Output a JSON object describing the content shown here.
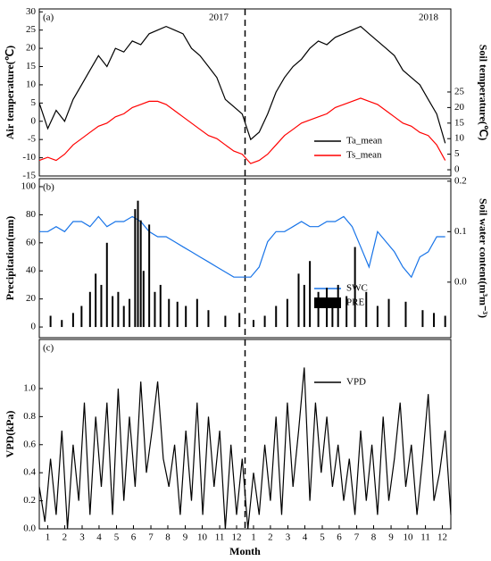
{
  "chart_data": [
    {
      "type": "line",
      "panel_label": "(a)",
      "ylabel": "Air temperature(℃)",
      "y2label": "Soil temperature(℃)",
      "annotations": [
        "2017",
        "2018"
      ],
      "vline": 365,
      "xlim": [
        0,
        730
      ],
      "ylim": [
        -15,
        30.8
      ],
      "yticks": [
        -15,
        -10,
        -5,
        0,
        5,
        10,
        15,
        20,
        25,
        30
      ],
      "y2lim": [
        -2,
        51.7
      ],
      "y2ticks": [
        0,
        5,
        10,
        15,
        20,
        25
      ],
      "x": [
        0,
        15,
        30,
        45,
        60,
        75,
        90,
        105,
        120,
        135,
        150,
        165,
        180,
        195,
        210,
        225,
        240,
        255,
        270,
        285,
        300,
        315,
        330,
        345,
        360,
        375,
        390,
        405,
        420,
        435,
        450,
        465,
        480,
        495,
        510,
        525,
        540,
        555,
        570,
        585,
        600,
        615,
        630,
        645,
        660,
        675,
        690,
        705,
        720
      ],
      "series": [
        {
          "name": "Ta_mean",
          "color": "#000000",
          "values": [
            5,
            -2,
            3,
            0,
            6,
            10,
            14,
            18,
            15,
            20,
            19,
            22,
            21,
            24,
            25,
            26,
            25,
            24,
            20,
            18,
            15,
            12,
            6,
            4,
            2,
            -5,
            -3,
            2,
            8,
            12,
            15,
            17,
            20,
            22,
            21,
            23,
            24,
            25,
            26,
            24,
            22,
            20,
            18,
            14,
            12,
            10,
            6,
            2,
            -6
          ]
        },
        {
          "name": "Ts_mean",
          "color": "#ff0000",
          "axis": "y2",
          "values": [
            3,
            4,
            3,
            5,
            8,
            10,
            12,
            14,
            15,
            17,
            18,
            20,
            21,
            22,
            22,
            21,
            19,
            17,
            15,
            13,
            11,
            10,
            8,
            6,
            5,
            2,
            3,
            5,
            8,
            11,
            13,
            15,
            16,
            17,
            18,
            20,
            21,
            22,
            23,
            22,
            21,
            19,
            17,
            15,
            14,
            12,
            11,
            8,
            3
          ]
        }
      ]
    },
    {
      "type": "bar",
      "panel_label": "(b)",
      "ylabel": "Precipitation(mm)",
      "y2label": "Soil water content(m³m⁻³)",
      "vline": 365,
      "xlim": [
        0,
        730
      ],
      "ylim": [
        -7.6,
        105.7
      ],
      "yticks": [
        0,
        20,
        40,
        60,
        80,
        100
      ],
      "y2lim": [
        -0.11,
        0.205
      ],
      "y2ticks": [
        {
          "value": 0,
          "label": "0.0"
        },
        0.1,
        0.2
      ],
      "series": [
        {
          "name": "SWC",
          "type": "line",
          "color": "#1874e8",
          "axis": "y2",
          "x": [
            0,
            15,
            30,
            45,
            60,
            75,
            90,
            105,
            120,
            135,
            150,
            165,
            180,
            195,
            210,
            225,
            240,
            255,
            270,
            285,
            300,
            315,
            330,
            345,
            360,
            375,
            390,
            405,
            420,
            435,
            450,
            465,
            480,
            495,
            510,
            525,
            540,
            555,
            570,
            585,
            600,
            615,
            630,
            645,
            660,
            675,
            690,
            705,
            720
          ],
          "values": [
            0.1,
            0.1,
            0.11,
            0.1,
            0.12,
            0.12,
            0.11,
            0.13,
            0.11,
            0.12,
            0.12,
            0.13,
            0.12,
            0.1,
            0.09,
            0.09,
            0.08,
            0.07,
            0.06,
            0.05,
            0.04,
            0.03,
            0.02,
            0.01,
            0.01,
            0.01,
            0.03,
            0.08,
            0.1,
            0.1,
            0.11,
            0.12,
            0.11,
            0.11,
            0.12,
            0.12,
            0.13,
            0.11,
            0.07,
            0.03,
            0.1,
            0.08,
            0.06,
            0.03,
            0.01,
            0.05,
            0.06,
            0.09,
            0.09
          ]
        },
        {
          "name": "PRE",
          "type": "bar",
          "color": "#000000",
          "x": [
            20,
            40,
            60,
            75,
            90,
            100,
            110,
            120,
            130,
            140,
            150,
            160,
            170,
            175,
            180,
            185,
            195,
            205,
            215,
            230,
            245,
            260,
            280,
            300,
            330,
            355,
            380,
            400,
            420,
            440,
            460,
            470,
            480,
            495,
            510,
            520,
            530,
            545,
            560,
            580,
            600,
            620,
            650,
            680,
            700,
            720
          ],
          "values": [
            8,
            5,
            10,
            15,
            25,
            38,
            30,
            60,
            22,
            25,
            15,
            20,
            84,
            90,
            76,
            40,
            73,
            25,
            30,
            20,
            18,
            15,
            20,
            12,
            8,
            10,
            5,
            8,
            15,
            20,
            38,
            30,
            47,
            25,
            28,
            20,
            30,
            22,
            57,
            25,
            15,
            20,
            18,
            12,
            10,
            8
          ]
        }
      ]
    },
    {
      "type": "line",
      "panel_label": "(c)",
      "ylabel": "VPD(kPa)",
      "xlabel": "Month",
      "vline": 365,
      "xlim": [
        0,
        730
      ],
      "ylim": [
        0,
        1.35
      ],
      "yticks": [
        {
          "value": 0,
          "label": "0.0"
        },
        0.2,
        0.4,
        0.6,
        0.8,
        {
          "value": 1,
          "label": "1.0"
        }
      ],
      "xticks": [
        {
          "value": 15,
          "label": "1"
        },
        {
          "value": 45,
          "label": "2"
        },
        {
          "value": 76,
          "label": "3"
        },
        {
          "value": 106,
          "label": "4"
        },
        {
          "value": 137,
          "label": "5"
        },
        {
          "value": 167,
          "label": "6"
        },
        {
          "value": 198,
          "label": "7"
        },
        {
          "value": 228,
          "label": "8"
        },
        {
          "value": 259,
          "label": "9"
        },
        {
          "value": 289,
          "label": "10"
        },
        {
          "value": 320,
          "label": "11"
        },
        {
          "value": 350,
          "label": "12"
        },
        {
          "value": 380,
          "label": "1"
        },
        {
          "value": 410,
          "label": "2"
        },
        {
          "value": 441,
          "label": "3"
        },
        {
          "value": 471,
          "label": "4"
        },
        {
          "value": 502,
          "label": "5"
        },
        {
          "value": 532,
          "label": "6"
        },
        {
          "value": 563,
          "label": "7"
        },
        {
          "value": 593,
          "label": "8"
        },
        {
          "value": 624,
          "label": "9"
        },
        {
          "value": 654,
          "label": "10"
        },
        {
          "value": 685,
          "label": "11"
        },
        {
          "value": 715,
          "label": "12"
        }
      ],
      "x": [
        0,
        10,
        20,
        30,
        40,
        50,
        60,
        70,
        80,
        90,
        100,
        110,
        120,
        130,
        140,
        150,
        160,
        170,
        180,
        190,
        200,
        210,
        220,
        230,
        240,
        250,
        260,
        270,
        280,
        290,
        300,
        310,
        320,
        330,
        340,
        350,
        360,
        370,
        380,
        390,
        400,
        410,
        420,
        430,
        440,
        450,
        460,
        470,
        480,
        490,
        500,
        510,
        520,
        530,
        540,
        550,
        560,
        570,
        580,
        590,
        600,
        610,
        620,
        630,
        640,
        650,
        660,
        670,
        680,
        690,
        700,
        710,
        720,
        730
      ],
      "series": [
        {
          "name": "VPD",
          "color": "#000000",
          "values": [
            0.3,
            0.05,
            0.5,
            0.1,
            0.7,
            0.0,
            0.6,
            0.2,
            0.9,
            0.1,
            0.8,
            0.3,
            0.9,
            0.1,
            1.0,
            0.2,
            0.8,
            0.3,
            1.05,
            0.4,
            0.7,
            1.05,
            0.5,
            0.3,
            0.6,
            0.1,
            0.7,
            0.2,
            0.9,
            0.1,
            0.8,
            0.3,
            0.7,
            0.0,
            0.6,
            0.1,
            0.5,
            0.0,
            0.4,
            0.1,
            0.6,
            0.2,
            0.8,
            0.1,
            0.9,
            0.3,
            0.7,
            1.15,
            0.2,
            0.9,
            0.4,
            0.8,
            0.3,
            0.6,
            0.2,
            0.5,
            0.1,
            0.7,
            0.2,
            0.6,
            0.1,
            0.8,
            0.2,
            0.5,
            0.9,
            0.3,
            0.6,
            0.1,
            0.5,
            0.96,
            0.2,
            0.4,
            0.7,
            0.1
          ]
        }
      ]
    }
  ]
}
